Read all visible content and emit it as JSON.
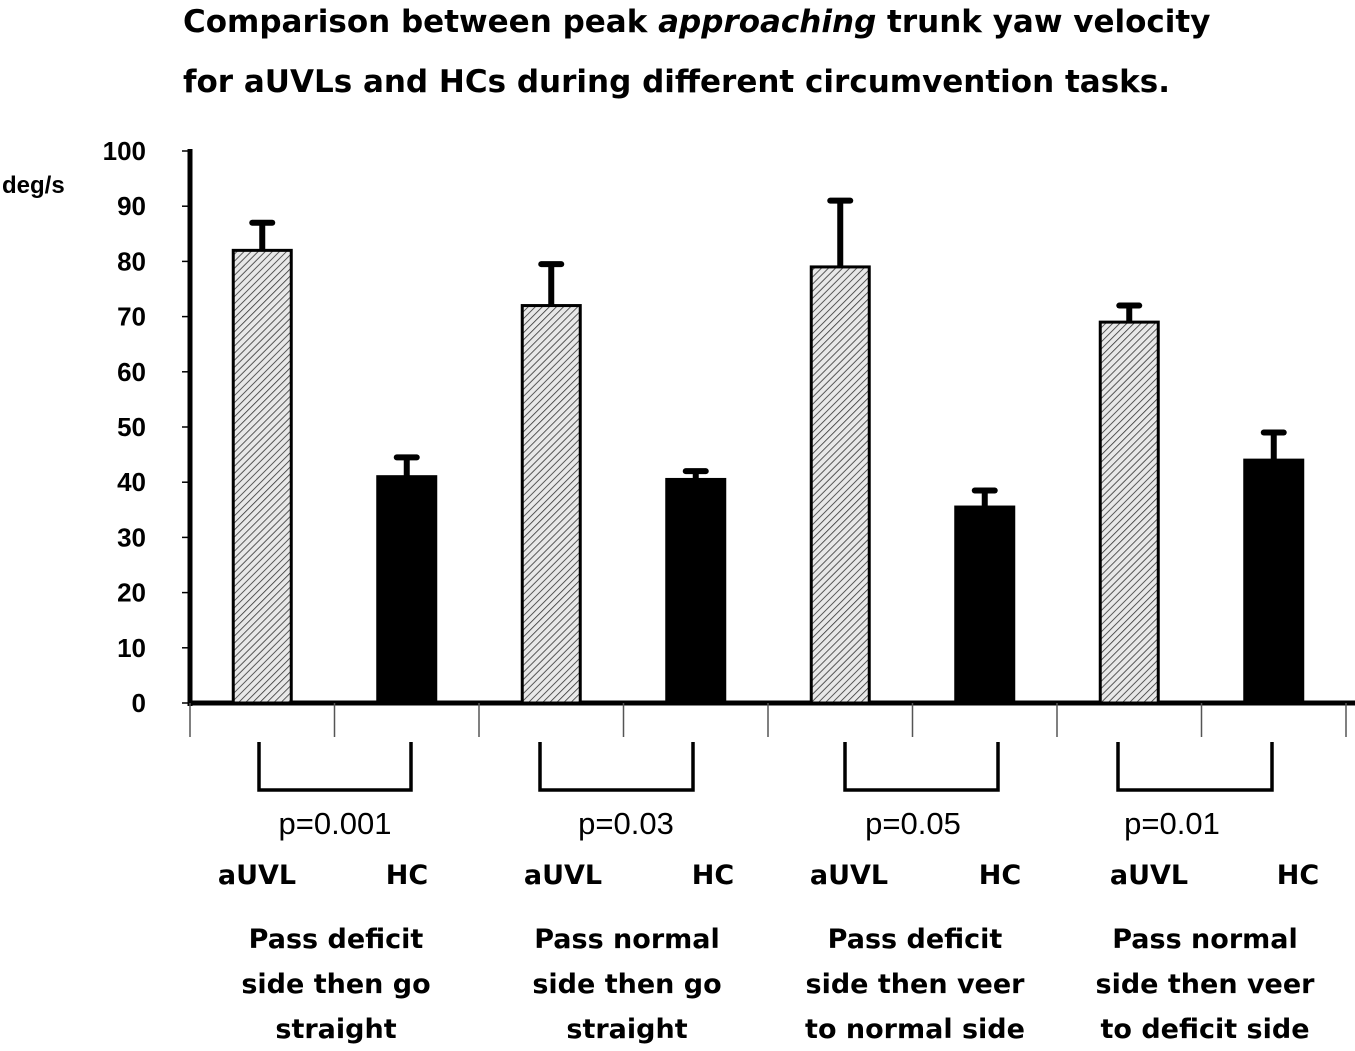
{
  "chart_data": {
    "type": "bar",
    "title_parts": {
      "line1_pre": "Comparison between peak ",
      "line1_emph": "approaching",
      "line1_post": " trunk yaw velocity",
      "line2": "for aUVLs and HCs during different circumvention tasks."
    },
    "ylabel": "deg/s",
    "ylim": [
      0,
      100
    ],
    "yticks": [
      "0",
      "10",
      "20",
      "30",
      "40",
      "50",
      "60",
      "70",
      "80",
      "90",
      "100"
    ],
    "categories": [
      "Pass deficit side then go straight",
      "Pass normal side then go straight",
      "Pass deficit side then veer to normal side",
      "Pass normal side then veer to deficit side"
    ],
    "category_lines": [
      [
        "Pass deficit",
        "side then go",
        "straight"
      ],
      [
        "Pass normal",
        "side then go",
        "straight"
      ],
      [
        "Pass deficit",
        "side then veer",
        "to normal side"
      ],
      [
        "Pass normal",
        "side then veer",
        "to deficit side"
      ]
    ],
    "series": [
      {
        "name": "aUVL",
        "pattern": "hatched",
        "values": [
          82,
          72,
          79,
          69
        ],
        "errors": [
          5,
          7.5,
          12,
          3
        ]
      },
      {
        "name": "HC",
        "pattern": "solid",
        "values": [
          41,
          40.5,
          35.5,
          44
        ],
        "errors": [
          3.5,
          1.5,
          3,
          5
        ]
      }
    ],
    "p_values": [
      "p=0.001",
      "p=0.03",
      "p=0.05",
      "p=0.01"
    ],
    "group_labels": {
      "a": "aUVL",
      "b": "HC"
    },
    "colors": {
      "hatched_fill": "#d8d8d8",
      "solid_fill": "#000000",
      "axis": "#000000"
    }
  }
}
